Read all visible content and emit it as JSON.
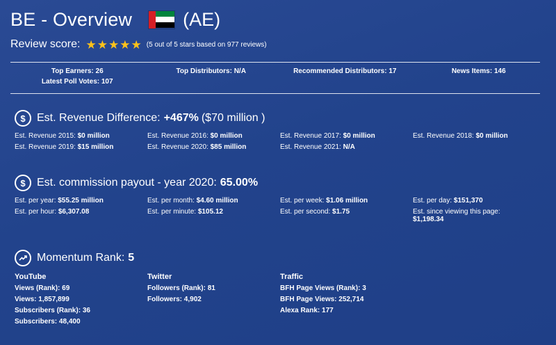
{
  "header": {
    "title": "BE - Overview",
    "country_code": "(AE)",
    "flag": "uae-flag",
    "review_label": "Review score:",
    "stars": 5,
    "review_note": "(5 out of 5 stars based on 977 reviews)"
  },
  "stats": [
    {
      "label": "Top Earners:",
      "value": "26"
    },
    {
      "label": "Top Distributors:",
      "value": "N/A"
    },
    {
      "label": "Recommended Distributors:",
      "value": "17"
    },
    {
      "label": "News Items:",
      "value": "146"
    },
    {
      "label": "Latest Poll Votes:",
      "value": "107"
    }
  ],
  "revenue": {
    "icon": "dollar-icon",
    "title": "Est. Revenue Difference:",
    "value": "+467%",
    "suffix": "($70 million )",
    "items": [
      {
        "label": "Est. Revenue 2015:",
        "value": "$0 million"
      },
      {
        "label": "Est. Revenue 2016:",
        "value": "$0 million"
      },
      {
        "label": "Est. Revenue 2017:",
        "value": "$0 million"
      },
      {
        "label": "Est. Revenue 2018:",
        "value": "$0 million"
      },
      {
        "label": "Est. Revenue 2019:",
        "value": "$15 million"
      },
      {
        "label": "Est. Revenue 2020:",
        "value": "$85 million"
      },
      {
        "label": "Est. Revenue 2021:",
        "value": "N/A"
      }
    ]
  },
  "commission": {
    "icon": "dollar-icon",
    "title": "Est. commission payout - year 2020:",
    "value": "65.00%",
    "items": [
      {
        "label": "Est. per year:",
        "value": "$55.25 million"
      },
      {
        "label": "Est. per month:",
        "value": "$4.60 million"
      },
      {
        "label": "Est. per week:",
        "value": "$1.06 million"
      },
      {
        "label": "Est. per day:",
        "value": "$151,370"
      },
      {
        "label": "Est. per hour:",
        "value": "$6,307.08"
      },
      {
        "label": "Est. per minute:",
        "value": "$105.12"
      },
      {
        "label": "Est. per second:",
        "value": "$1.75"
      },
      {
        "label": "Est. since viewing this page:",
        "value": "$1,198.34"
      }
    ]
  },
  "momentum": {
    "icon": "trending-up-icon",
    "title": "Momentum Rank:",
    "value": "5",
    "columns": [
      {
        "heading": "YouTube",
        "items": [
          {
            "label": "Views (Rank):",
            "value": "69"
          },
          {
            "label": "Views:",
            "value": "1,857,899"
          },
          {
            "label": "Subscribers (Rank):",
            "value": "36"
          },
          {
            "label": "Subscribers:",
            "value": "48,400"
          }
        ]
      },
      {
        "heading": "Twitter",
        "items": [
          {
            "label": "Followers (Rank):",
            "value": "81"
          },
          {
            "label": "Followers:",
            "value": "4,902"
          }
        ]
      },
      {
        "heading": "Traffic",
        "items": [
          {
            "label": "BFH Page Views (Rank):",
            "value": "3"
          },
          {
            "label": "BFH Page Views:",
            "value": "252,714"
          },
          {
            "label": "Alexa Rank:",
            "value": "177"
          }
        ]
      }
    ]
  },
  "colors": {
    "background": "#22438c",
    "star": "#ffc21a",
    "text": "#ffffff"
  }
}
